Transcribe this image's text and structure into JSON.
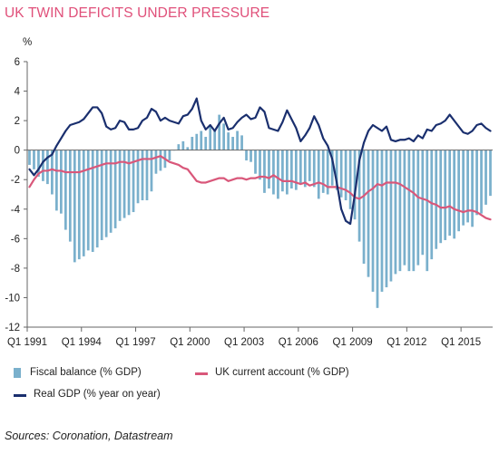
{
  "title": "UK TWIN DEFICITS UNDER PRESSURE",
  "source": "Sources: Coronation, Datastream",
  "colors": {
    "title": "#e0507a",
    "fiscal": "#7ab0cc",
    "current": "#d9577a",
    "gdp": "#1a2f6e",
    "axis": "#666666",
    "grid": "#dddddd"
  },
  "legend": {
    "fiscal": "Fiscal balance (% GDP)",
    "current": "UK current account (% GDP)",
    "gdp": "Real GDP (% year on year)"
  },
  "chart_data": {
    "type": "bar",
    "title": "UK TWIN DEFICITS UNDER PRESSURE",
    "ylabel": "%",
    "ylim": [
      -12,
      6
    ],
    "yticks": [
      6,
      4,
      2,
      0,
      -2,
      -4,
      -6,
      -8,
      -10,
      -12
    ],
    "x_start": "Q1 1991",
    "frequency": "quarterly",
    "xtick_labels": [
      "Q1 1991",
      "Q1 1994",
      "Q1 1997",
      "Q1 2000",
      "Q1 2003",
      "Q1 2006",
      "Q1 2009",
      "Q1 2012",
      "Q1 2015"
    ],
    "xtick_indices": [
      0,
      12,
      24,
      36,
      48,
      60,
      72,
      84,
      96
    ],
    "grid": false,
    "legend_position": "bottom",
    "series": [
      {
        "name": "Fiscal balance (% GDP)",
        "type": "bar",
        "values": [
          -1.0,
          -1.3,
          -1.8,
          -2.1,
          -2.3,
          -3.0,
          -4.1,
          -4.3,
          -5.4,
          -6.2,
          -7.6,
          -7.4,
          -7.2,
          -6.8,
          -6.9,
          -6.6,
          -6.1,
          -5.9,
          -5.6,
          -5.3,
          -4.8,
          -4.6,
          -4.4,
          -4.2,
          -3.6,
          -3.4,
          -3.4,
          -2.8,
          -1.6,
          -1.4,
          -1.2,
          -0.7,
          0.0,
          0.4,
          0.6,
          0.2,
          0.9,
          1.1,
          1.3,
          0.9,
          1.6,
          1.4,
          2.4,
          1.8,
          1.2,
          0.9,
          1.3,
          1.0,
          -0.7,
          -0.8,
          -1.6,
          -2.0,
          -2.9,
          -2.6,
          -3.0,
          -3.3,
          -2.8,
          -3.0,
          -2.6,
          -2.7,
          -2.3,
          -2.5,
          -2.1,
          -2.5,
          -3.3,
          -2.9,
          -3.0,
          -2.4,
          -2.7,
          -3.2,
          -3.4,
          -4.0,
          -4.7,
          -6.2,
          -7.7,
          -8.6,
          -9.6,
          -10.7,
          -9.6,
          -9.3,
          -8.9,
          -8.4,
          -8.2,
          -7.8,
          -8.2,
          -8.2,
          -7.8,
          -7.1,
          -8.2,
          -7.4,
          -6.7,
          -6.3,
          -6.1,
          -5.8,
          -6.0,
          -5.5,
          -5.1,
          -4.9,
          -5.2,
          -4.4,
          -4.3,
          -3.7,
          -3.1
        ],
        "color": "#7ab0cc"
      },
      {
        "name": "UK current account (% GDP)",
        "type": "line",
        "values": [
          -2.5,
          -2.0,
          -1.6,
          -1.4,
          -1.4,
          -1.3,
          -1.4,
          -1.4,
          -1.5,
          -1.5,
          -1.5,
          -1.5,
          -1.4,
          -1.3,
          -1.2,
          -1.1,
          -1.0,
          -0.9,
          -0.9,
          -0.9,
          -0.8,
          -0.8,
          -0.9,
          -0.8,
          -0.7,
          -0.6,
          -0.6,
          -0.6,
          -0.5,
          -0.4,
          -0.6,
          -0.8,
          -0.9,
          -1.0,
          -1.2,
          -1.3,
          -1.7,
          -2.1,
          -2.2,
          -2.2,
          -2.1,
          -2.0,
          -1.9,
          -1.9,
          -2.1,
          -2.0,
          -1.9,
          -1.9,
          -2.0,
          -1.9,
          -1.9,
          -1.8,
          -1.8,
          -1.9,
          -1.7,
          -1.9,
          -2.1,
          -2.1,
          -2.1,
          -2.2,
          -2.3,
          -2.2,
          -2.4,
          -2.3,
          -2.2,
          -2.3,
          -2.5,
          -2.5,
          -2.5,
          -2.6,
          -2.7,
          -2.9,
          -3.2,
          -3.3,
          -3.1,
          -2.8,
          -2.6,
          -2.3,
          -2.4,
          -2.2,
          -2.2,
          -2.2,
          -2.3,
          -2.5,
          -2.7,
          -2.9,
          -3.2,
          -3.3,
          -3.4,
          -3.6,
          -3.7,
          -3.9,
          -3.9,
          -3.8,
          -4.0,
          -4.1,
          -4.2,
          -4.1,
          -4.1,
          -4.2,
          -4.4,
          -4.6,
          -4.7
        ],
        "color": "#d9577a"
      },
      {
        "name": "Real GDP (% year on year)",
        "type": "line",
        "values": [
          -1.3,
          -1.7,
          -1.3,
          -0.8,
          -0.5,
          -0.3,
          0.3,
          0.8,
          1.3,
          1.7,
          1.8,
          1.9,
          2.1,
          2.5,
          2.9,
          2.9,
          2.5,
          1.6,
          1.4,
          1.5,
          2.0,
          1.9,
          1.4,
          1.4,
          1.5,
          2.0,
          2.2,
          2.8,
          2.6,
          2.0,
          2.2,
          2.0,
          1.9,
          1.8,
          2.3,
          2.4,
          2.8,
          3.5,
          2.0,
          1.4,
          1.7,
          1.3,
          1.8,
          2.2,
          1.4,
          1.5,
          1.9,
          2.2,
          2.4,
          2.1,
          2.2,
          2.9,
          2.6,
          1.5,
          1.4,
          1.3,
          1.9,
          2.7,
          2.1,
          1.5,
          0.6,
          1.0,
          1.5,
          2.3,
          1.7,
          0.8,
          0.3,
          -0.6,
          -2.2,
          -4.0,
          -4.8,
          -5.0,
          -3.0,
          -0.7,
          0.5,
          1.3,
          1.7,
          1.5,
          1.3,
          1.6,
          0.7,
          0.6,
          0.7,
          0.7,
          0.8,
          0.6,
          1.0,
          0.8,
          1.4,
          1.3,
          1.7,
          1.8,
          2.0,
          2.4,
          2.0,
          1.6,
          1.2,
          1.1,
          1.3,
          1.7,
          1.8,
          1.5,
          1.3
        ],
        "color": "#1a2f6e"
      }
    ]
  }
}
